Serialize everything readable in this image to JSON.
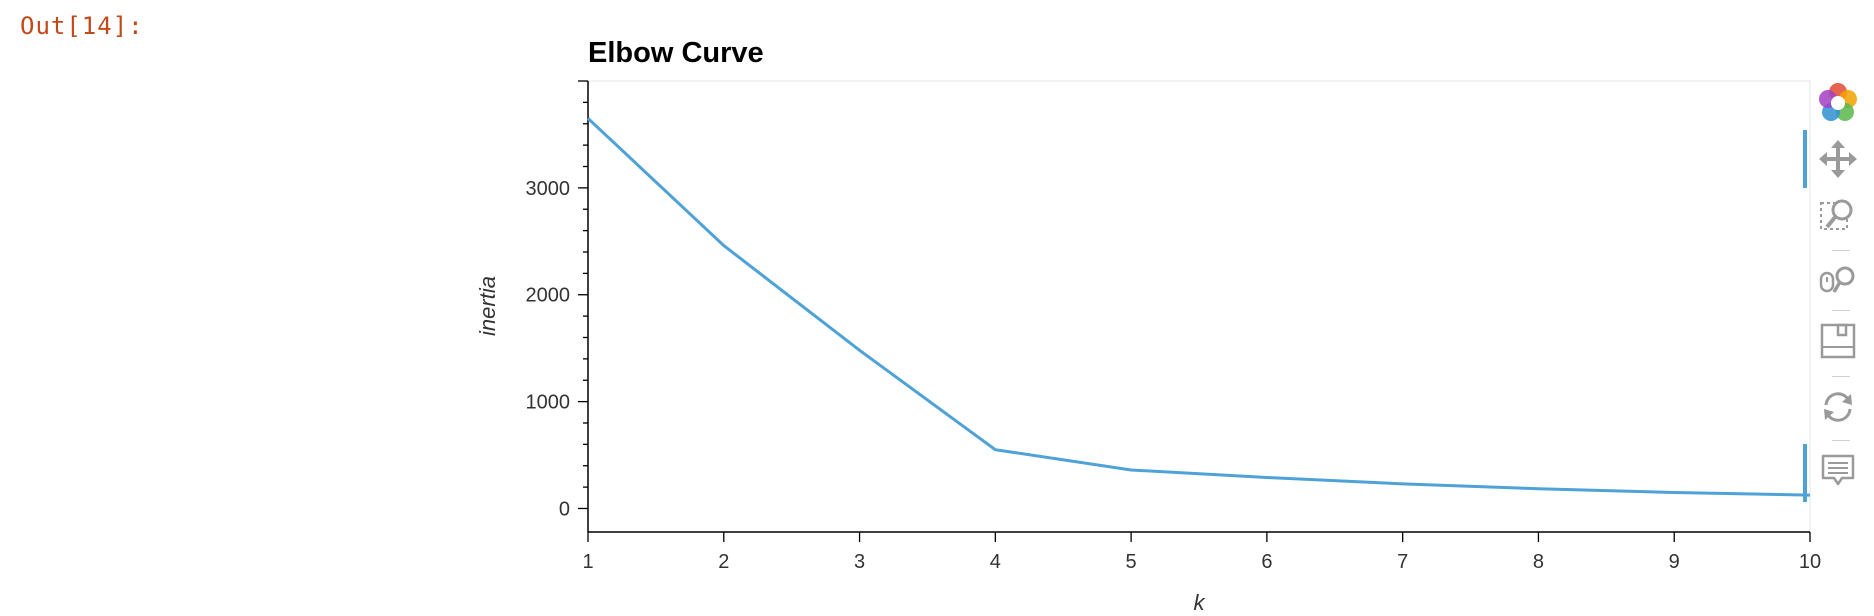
{
  "cell": {
    "output_prompt": "Out[14]:"
  },
  "chart_data": {
    "type": "line",
    "title": "Elbow Curve",
    "xlabel": "k",
    "ylabel": "inertia",
    "x": [
      1,
      2,
      3,
      4,
      5,
      6,
      7,
      8,
      9,
      10
    ],
    "series": [
      {
        "values": [
          3650,
          2460,
          1480,
          550,
          360,
          290,
          230,
          185,
          150,
          125
        ],
        "color": "#4ea2d8"
      }
    ],
    "xlim": [
      1,
      10
    ],
    "ylim": [
      -220,
      4000
    ],
    "x_ticks": [
      "1",
      "2",
      "3",
      "4",
      "5",
      "6",
      "7",
      "8",
      "9",
      "10"
    ],
    "y_ticks": [
      "0",
      "1000",
      "2000",
      "3000"
    ],
    "grid": false,
    "legend": "none"
  },
  "toolbar": {
    "logo_icon": "bokeh-logo-icon",
    "tools": [
      {
        "icon": "pan-icon",
        "active": true
      },
      {
        "icon": "box-zoom-icon",
        "active": false
      },
      {
        "icon": "wheel-zoom-icon",
        "active": false
      },
      {
        "icon": "save-icon",
        "active": false
      },
      {
        "icon": "reset-icon",
        "active": false
      },
      {
        "icon": "hover-icon",
        "active": true
      }
    ]
  }
}
